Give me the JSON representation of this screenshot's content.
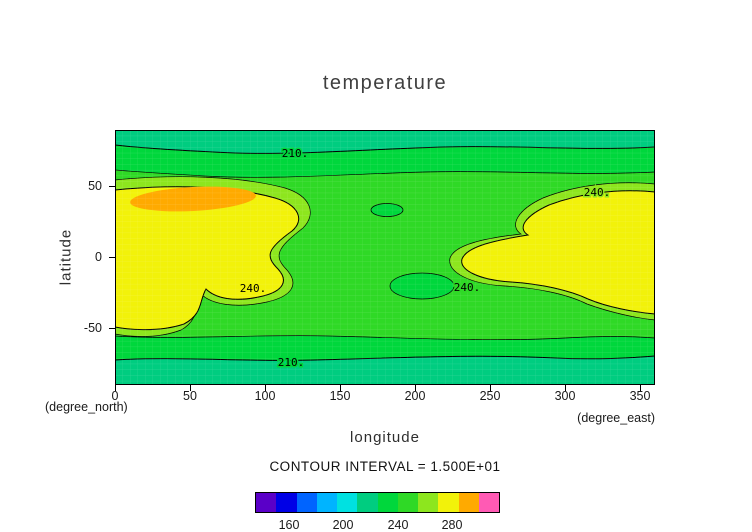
{
  "title": "temperature",
  "axes": {
    "x_label": "longitude",
    "x_unit_note": "(degree_east)",
    "y_label": "latitude",
    "y_unit_note": "(degree_north)",
    "x_ticks": [
      "0",
      "50",
      "100",
      "150",
      "200",
      "250",
      "300",
      "350"
    ],
    "y_ticks": [
      "50",
      "0",
      "-50"
    ]
  },
  "contour": {
    "interval_text": "CONTOUR INTERVAL = 1.500E+01",
    "line_labels": [
      "210.",
      "240.",
      "240.",
      "240.",
      "210."
    ]
  },
  "colorbar": {
    "tick_labels": [
      "160",
      "200",
      "240",
      "280"
    ],
    "colors": [
      "#5a00c8",
      "#0000e6",
      "#0064ff",
      "#00b4ff",
      "#00e1e1",
      "#00cd80",
      "#00d73c",
      "#2fd926",
      "#8de61e",
      "#f2f20a",
      "#ffaa00",
      "#ff5ab4"
    ]
  },
  "palette": {
    "field_base_green": "#2fd926",
    "band_green": "#00d73c",
    "band_teal": "#00cd80",
    "warm_lightgreen": "#8de61e",
    "warm_yellow": "#f2f20a",
    "hot_orange": "#ffaa00"
  },
  "chart_data": {
    "type": "heatmap",
    "title": "temperature",
    "xlabel": "longitude (degree_east)",
    "ylabel": "latitude (degree_north)",
    "xlim": [
      0,
      360
    ],
    "ylim": [
      -90,
      90
    ],
    "grid": "fine mesh over filled contours",
    "legend_position": "bottom colorbar",
    "contour_interval": 15.0,
    "contour_labels_visible": [
      210,
      240
    ],
    "colorbar_ticks": [
      160,
      200,
      240,
      280
    ],
    "colorbar_range_estimate": [
      135,
      315
    ],
    "lons": [
      0,
      45,
      90,
      135,
      180,
      225,
      270,
      315,
      360
    ],
    "lats": [
      75,
      50,
      25,
      0,
      -25,
      -50,
      -75
    ],
    "values": [
      [
        205,
        206,
        209,
        211,
        213,
        211,
        209,
        207,
        205
      ],
      [
        232,
        240,
        238,
        227,
        221,
        224,
        229,
        234,
        232
      ],
      [
        246,
        262,
        254,
        237,
        227,
        231,
        243,
        247,
        246
      ],
      [
        249,
        251,
        246,
        240,
        231,
        238,
        247,
        249,
        249
      ],
      [
        246,
        245,
        243,
        234,
        221,
        236,
        245,
        247,
        246
      ],
      [
        227,
        229,
        231,
        227,
        221,
        224,
        227,
        229,
        227
      ],
      [
        203,
        204,
        206,
        207,
        208,
        207,
        205,
        204,
        203
      ]
    ],
    "notes": "Filled contour map: yellow warm bands (>=240) at low latitudes over western and eastern longitudes, orange maximum (~265) near 55E 40N, greens toward the poles (~200-210), local cool ovals near 190E 30N and 205E -25N."
  }
}
